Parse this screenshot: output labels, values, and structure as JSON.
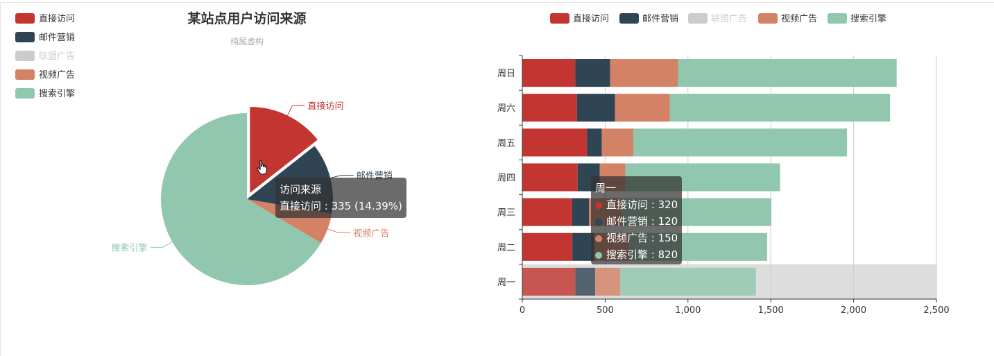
{
  "colors": {
    "direct": "#c23531",
    "email": "#2f4554",
    "union": "#cccccc",
    "video": "#d48265",
    "search": "#91c7ae",
    "title": "#333333",
    "subtitle": "#aaaaaa",
    "axis": "#333333",
    "grid": "#cccccc",
    "highlight": "#dddddd"
  },
  "chart_data": [
    {
      "type": "pie",
      "title": "某站点用户访问来源",
      "subtitle": "纯属虚构",
      "legend": {
        "placement": "top-left",
        "items": [
          {
            "name": "直接访问",
            "color": "#c23531",
            "disabled": false
          },
          {
            "name": "邮件营销",
            "color": "#2f4554",
            "disabled": false
          },
          {
            "name": "联盟广告",
            "color": "#cccccc",
            "disabled": true
          },
          {
            "name": "视频广告",
            "color": "#d48265",
            "disabled": false
          },
          {
            "name": "搜索引擎",
            "color": "#91c7ae",
            "disabled": false
          }
        ]
      },
      "slices": [
        {
          "name": "直接访问",
          "value": 335,
          "color": "#c23531",
          "emphasis": true
        },
        {
          "name": "邮件营销",
          "value": 310,
          "color": "#2f4554",
          "emphasis": false
        },
        {
          "name": "视频广告",
          "value": 135,
          "color": "#d48265",
          "emphasis": false
        },
        {
          "name": "搜索引擎",
          "value": 1548,
          "color": "#91c7ae",
          "emphasis": false
        }
      ],
      "tooltip": {
        "title": "访问来源",
        "line": "直接访问 : 335 (14.39%)"
      }
    },
    {
      "type": "bar",
      "orientation": "horizontal",
      "stacked": true,
      "legend": {
        "placement": "top-center",
        "items": [
          {
            "name": "直接访问",
            "color": "#c23531",
            "disabled": false
          },
          {
            "name": "邮件营销",
            "color": "#2f4554",
            "disabled": false
          },
          {
            "name": "联盟广告",
            "color": "#cccccc",
            "disabled": true
          },
          {
            "name": "视频广告",
            "color": "#d48265",
            "disabled": false
          },
          {
            "name": "搜索引擎",
            "color": "#91c7ae",
            "disabled": false
          }
        ]
      },
      "categories": [
        "周一",
        "周二",
        "周三",
        "周四",
        "周五",
        "周六",
        "周日"
      ],
      "series": [
        {
          "name": "直接访问",
          "color": "#c23531",
          "values": [
            320,
            302,
            301,
            334,
            390,
            330,
            320
          ]
        },
        {
          "name": "邮件营销",
          "color": "#2f4554",
          "values": [
            120,
            132,
            101,
            134,
            90,
            230,
            210
          ]
        },
        {
          "name": "视频广告",
          "color": "#d48265",
          "values": [
            150,
            212,
            201,
            154,
            190,
            330,
            410
          ]
        },
        {
          "name": "搜索引擎",
          "color": "#91c7ae",
          "values": [
            820,
            832,
            901,
            934,
            1290,
            1330,
            1320
          ]
        }
      ],
      "xlim": [
        0,
        2500
      ],
      "xticks": [
        0,
        500,
        1000,
        1500,
        2000,
        2500
      ],
      "xtick_labels": [
        "0",
        "500",
        "1,000",
        "1,500",
        "2,000",
        "2,500"
      ],
      "grid": true,
      "highlight_category": "周一",
      "tooltip": {
        "title": "周一",
        "rows": [
          {
            "name": "直接访问",
            "value": 320,
            "color": "#c23531"
          },
          {
            "name": "邮件营销",
            "value": 120,
            "color": "#2f4554"
          },
          {
            "name": "视频广告",
            "value": 150,
            "color": "#d48265"
          },
          {
            "name": "搜索引擎",
            "value": 820,
            "color": "#91c7ae"
          }
        ]
      }
    }
  ]
}
